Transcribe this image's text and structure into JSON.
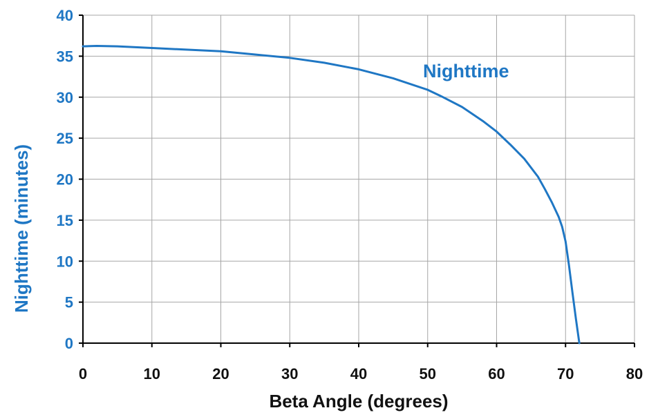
{
  "chart_data": {
    "type": "line",
    "title": "",
    "xlabel": "Beta Angle (degrees)",
    "ylabel": "Nighttime (minutes)",
    "xlim": [
      0,
      80
    ],
    "ylim": [
      0,
      40
    ],
    "x_ticks": [
      0,
      10,
      20,
      30,
      40,
      50,
      60,
      70,
      80
    ],
    "y_ticks": [
      0,
      5,
      10,
      15,
      20,
      25,
      30,
      35,
      40
    ],
    "x_tick_labels": [
      "0",
      "10",
      "20",
      "30",
      "40",
      "50",
      "60",
      "70",
      "80"
    ],
    "y_tick_labels": [
      "0",
      "5",
      "10",
      "15",
      "20",
      "25",
      "30",
      "35",
      "40"
    ],
    "grid": true,
    "legend": "none",
    "annotation": "Nighttime",
    "colors": {
      "series": "#1F77C4",
      "y_tick_labels": "#1F77C4",
      "y_axis_title": "#1F77C4",
      "x_tick_labels": "#111111",
      "x_axis_title": "#111111",
      "grid": "#A6A6A6",
      "axis": "#000000"
    },
    "series": [
      {
        "x": [
          0,
          2,
          5,
          10,
          15,
          20,
          25,
          30,
          35,
          40,
          45,
          50,
          52,
          55,
          58,
          60,
          62,
          64,
          66,
          67,
          68,
          69,
          69.5,
          70,
          70.5,
          71,
          71.5,
          72
        ],
        "y": [
          36.2,
          36.25,
          36.2,
          36.0,
          35.8,
          35.6,
          35.2,
          34.8,
          34.2,
          33.4,
          32.3,
          30.9,
          30.1,
          28.8,
          27.1,
          25.8,
          24.2,
          22.5,
          20.3,
          18.8,
          17.2,
          15.4,
          14.2,
          12.4,
          9.5,
          6.2,
          3.0,
          0
        ]
      }
    ]
  }
}
